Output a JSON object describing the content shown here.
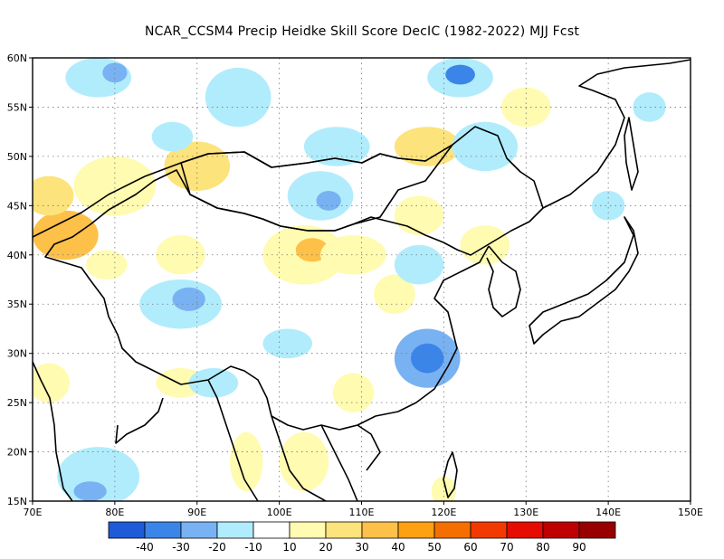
{
  "title": "NCAR_CCSM4 Precip Heidke Skill Score DecIC (1982-2022) MJJ Fcst",
  "map": {
    "lon_range": [
      70,
      150
    ],
    "lat_range": [
      15,
      60
    ],
    "lon_ticks": [
      {
        "value": 70,
        "label": "70E"
      },
      {
        "value": 80,
        "label": "80E"
      },
      {
        "value": 90,
        "label": "90E"
      },
      {
        "value": 100,
        "label": "100E"
      },
      {
        "value": 110,
        "label": "110E"
      },
      {
        "value": 120,
        "label": "120E"
      },
      {
        "value": 130,
        "label": "130E"
      },
      {
        "value": 140,
        "label": "140E"
      },
      {
        "value": 150,
        "label": "150E"
      }
    ],
    "lat_ticks": [
      {
        "value": 15,
        "label": "15N"
      },
      {
        "value": 20,
        "label": "20N"
      },
      {
        "value": 25,
        "label": "25N"
      },
      {
        "value": 30,
        "label": "30N"
      },
      {
        "value": 35,
        "label": "35N"
      },
      {
        "value": 40,
        "label": "40N"
      },
      {
        "value": 45,
        "label": "45N"
      },
      {
        "value": 50,
        "label": "50N"
      },
      {
        "value": 55,
        "label": "55N"
      },
      {
        "value": 60,
        "label": "60N"
      }
    ],
    "grid": "dotted",
    "skill_regions": [
      {
        "lon": 74,
        "lat": 42,
        "rx": 4,
        "ry": 2.5,
        "value": 35
      },
      {
        "lon": 72,
        "lat": 46,
        "rx": 3,
        "ry": 2,
        "value": 25
      },
      {
        "lon": 80,
        "lat": 47,
        "rx": 5,
        "ry": 3,
        "value": 15
      },
      {
        "lon": 90,
        "lat": 49,
        "rx": 4,
        "ry": 2.5,
        "value": 22
      },
      {
        "lon": 88,
        "lat": 40,
        "rx": 3,
        "ry": 2,
        "value": 15
      },
      {
        "lon": 103,
        "lat": 40,
        "rx": 5,
        "ry": 3,
        "value": 18
      },
      {
        "lon": 104,
        "lat": 40.5,
        "rx": 2,
        "ry": 1.2,
        "value": 32
      },
      {
        "lon": 118,
        "lat": 51,
        "rx": 4,
        "ry": 2,
        "value": 20
      },
      {
        "lon": 117,
        "lat": 44,
        "rx": 3,
        "ry": 2,
        "value": 15
      },
      {
        "lon": 109,
        "lat": 26,
        "rx": 2.5,
        "ry": 2,
        "value": 15
      },
      {
        "lon": 103,
        "lat": 19,
        "rx": 3,
        "ry": 3,
        "value": 15
      },
      {
        "lon": 96,
        "lat": 19,
        "rx": 2,
        "ry": 3,
        "value": 15
      },
      {
        "lon": 120,
        "lat": 16,
        "rx": 1.5,
        "ry": 1.5,
        "value": 18
      },
      {
        "lon": 109,
        "lat": 40,
        "rx": 4,
        "ry": 2,
        "value": 12
      },
      {
        "lon": 72,
        "lat": 27,
        "rx": 2.5,
        "ry": 2,
        "value": 15
      },
      {
        "lon": 79,
        "lat": 39,
        "rx": 2.5,
        "ry": 1.5,
        "value": 15
      },
      {
        "lon": 114,
        "lat": 36,
        "rx": 2.5,
        "ry": 2,
        "value": 15
      },
      {
        "lon": 130,
        "lat": 55,
        "rx": 3,
        "ry": 2,
        "value": 15
      },
      {
        "lon": 125,
        "lat": 41,
        "rx": 3,
        "ry": 2,
        "value": 15
      },
      {
        "lon": 88,
        "lat": 27,
        "rx": 3,
        "ry": 1.5,
        "value": 15
      },
      {
        "lon": 78,
        "lat": 58,
        "rx": 4,
        "ry": 2,
        "value": -15
      },
      {
        "lon": 80,
        "lat": 58.5,
        "rx": 1.5,
        "ry": 1,
        "value": -30
      },
      {
        "lon": 95,
        "lat": 56,
        "rx": 4,
        "ry": 3,
        "value": -12
      },
      {
        "lon": 107,
        "lat": 51,
        "rx": 4,
        "ry": 2,
        "value": -15
      },
      {
        "lon": 105,
        "lat": 46,
        "rx": 4,
        "ry": 2.5,
        "value": -15
      },
      {
        "lon": 106,
        "lat": 45.5,
        "rx": 1.5,
        "ry": 1,
        "value": -30
      },
      {
        "lon": 88,
        "lat": 35,
        "rx": 5,
        "ry": 2.5,
        "value": -15
      },
      {
        "lon": 89,
        "lat": 35.5,
        "rx": 2,
        "ry": 1.2,
        "value": -25
      },
      {
        "lon": 101,
        "lat": 31,
        "rx": 3,
        "ry": 1.5,
        "value": -15
      },
      {
        "lon": 118,
        "lat": 29.5,
        "rx": 4,
        "ry": 3,
        "value": -22
      },
      {
        "lon": 118,
        "lat": 29.5,
        "rx": 2,
        "ry": 1.5,
        "value": -35
      },
      {
        "lon": 125,
        "lat": 51,
        "rx": 4,
        "ry": 2.5,
        "value": -15
      },
      {
        "lon": 122,
        "lat": 58,
        "rx": 4,
        "ry": 2,
        "value": -20
      },
      {
        "lon": 122,
        "lat": 58.3,
        "rx": 1.8,
        "ry": 1,
        "value": -35
      },
      {
        "lon": 78,
        "lat": 17.5,
        "rx": 5,
        "ry": 3,
        "value": -15
      },
      {
        "lon": 77,
        "lat": 16,
        "rx": 2,
        "ry": 1,
        "value": -30
      },
      {
        "lon": 117,
        "lat": 39,
        "rx": 3,
        "ry": 2,
        "value": -15
      },
      {
        "lon": 92,
        "lat": 27,
        "rx": 3,
        "ry": 1.5,
        "value": -15
      },
      {
        "lon": 140,
        "lat": 45,
        "rx": 2,
        "ry": 1.5,
        "value": -15
      },
      {
        "lon": 145,
        "lat": 55,
        "rx": 2,
        "ry": 1.5,
        "value": -15
      },
      {
        "lon": 87,
        "lat": 52,
        "rx": 2.5,
        "ry": 1.5,
        "value": -15
      }
    ]
  },
  "colorbar": {
    "colors": [
      "#1f5bd9",
      "#3b85e8",
      "#79b2f2",
      "#b1ecfc",
      "#ffffff",
      "#fffbb0",
      "#fde37c",
      "#fdc049",
      "#fda012",
      "#f56f00",
      "#f23a00",
      "#e60c00",
      "#bf0000",
      "#980000"
    ],
    "labels": [
      "-40",
      "-30",
      "-20",
      "-10",
      "10",
      "20",
      "30",
      "40",
      "50",
      "60",
      "70",
      "80",
      "90"
    ]
  }
}
